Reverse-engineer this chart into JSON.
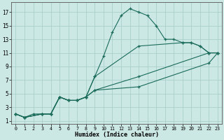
{
  "title": "",
  "xlabel": "Humidex (Indice chaleur)",
  "bg_color": "#cce8e4",
  "grid_color": "#aacfcb",
  "line_color": "#1a6b5a",
  "xlim": [
    -0.5,
    23.5
  ],
  "ylim": [
    0.5,
    18.5
  ],
  "xticks": [
    0,
    1,
    2,
    3,
    4,
    5,
    6,
    7,
    8,
    9,
    10,
    11,
    12,
    13,
    14,
    15,
    16,
    17,
    18,
    19,
    20,
    21,
    22,
    23
  ],
  "yticks": [
    1,
    3,
    5,
    7,
    9,
    11,
    13,
    15,
    17
  ],
  "lines": [
    {
      "x": [
        0,
        1,
        2,
        3,
        4,
        5,
        6,
        7,
        8,
        9,
        10,
        11,
        12,
        13,
        14,
        15,
        16,
        17,
        18,
        19,
        20,
        21,
        22,
        23
      ],
      "y": [
        2,
        1.5,
        2,
        2,
        2,
        4.5,
        4,
        4,
        4.5,
        7.5,
        10.5,
        14,
        16.5,
        17.5,
        17,
        16.5,
        15,
        13,
        13,
        12.5,
        12.5,
        12,
        11,
        11
      ]
    },
    {
      "x": [
        0,
        1,
        3,
        4,
        5,
        6,
        7,
        8,
        9,
        14,
        19,
        20,
        21,
        22,
        23
      ],
      "y": [
        2,
        1.5,
        2,
        2,
        4.5,
        4,
        4,
        4.5,
        7.5,
        12,
        12.5,
        12.5,
        12,
        11,
        11
      ]
    },
    {
      "x": [
        0,
        1,
        3,
        4,
        5,
        6,
        7,
        8,
        9,
        14,
        22,
        23
      ],
      "y": [
        2,
        1.5,
        2,
        2,
        4.5,
        4,
        4,
        4.5,
        5.5,
        7.5,
        11,
        11
      ]
    },
    {
      "x": [
        0,
        1,
        3,
        4,
        5,
        6,
        7,
        8,
        9,
        14,
        22,
        23
      ],
      "y": [
        2,
        1.5,
        2,
        2,
        4.5,
        4,
        4,
        4.5,
        5.5,
        6,
        9.5,
        11
      ]
    }
  ]
}
